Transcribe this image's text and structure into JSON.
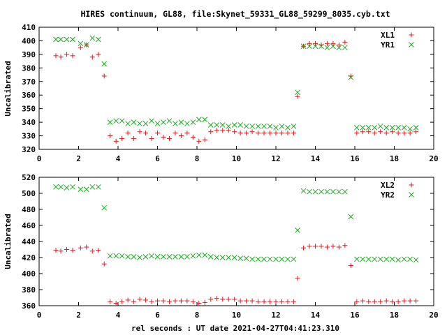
{
  "colors": {
    "series_a": "#e0191f",
    "series_b": "#18a81d"
  },
  "chart_data": [
    {
      "type": "scatter",
      "title": "HIRES continuum, GL88, file:Skynet_59331_GL88_59299_8035.cyb.txt",
      "ylabel": "Uncalibrated",
      "xlabel": "",
      "xlim": [
        0,
        20
      ],
      "ylim": [
        320,
        410
      ],
      "xticks": [
        0,
        2,
        4,
        6,
        8,
        10,
        12,
        14,
        16,
        18,
        20
      ],
      "yticks": [
        320,
        330,
        340,
        350,
        360,
        370,
        380,
        390,
        400,
        410
      ],
      "legend_position": "top-right",
      "series": [
        {
          "name": "XL1",
          "marker": "+",
          "color": "#e0191f",
          "x": [
            0.85,
            1.1,
            1.4,
            1.7,
            2.1,
            2.4,
            2.7,
            3.0,
            3.3,
            3.6,
            3.9,
            4.2,
            4.5,
            4.8,
            5.1,
            5.4,
            5.7,
            6.0,
            6.3,
            6.6,
            6.9,
            7.2,
            7.5,
            7.8,
            8.1,
            8.4,
            8.7,
            9.0,
            9.3,
            9.6,
            9.9,
            10.2,
            10.5,
            10.8,
            11.1,
            11.4,
            11.7,
            12.0,
            12.3,
            12.6,
            12.9,
            13.1,
            13.4,
            13.7,
            14.0,
            14.3,
            14.6,
            14.9,
            15.2,
            15.5,
            15.8,
            16.1,
            16.4,
            16.7,
            17.0,
            17.3,
            17.6,
            17.9,
            18.2,
            18.5,
            18.8,
            19.1
          ],
          "y": [
            389,
            388,
            390,
            389,
            395,
            397,
            388,
            390,
            374,
            330,
            326,
            328,
            332,
            328,
            333,
            332,
            328,
            332,
            329,
            328,
            332,
            330,
            332,
            329,
            326,
            327,
            333,
            334,
            334,
            334,
            333,
            332,
            332,
            333,
            332,
            332,
            332,
            332,
            332,
            332,
            332,
            359,
            396,
            398,
            398,
            397,
            398,
            398,
            397,
            399,
            374,
            332,
            333,
            333,
            332,
            333,
            332,
            333,
            332,
            332,
            332,
            333
          ]
        },
        {
          "name": "YR1",
          "marker": "x",
          "color": "#18a81d",
          "x": [
            0.85,
            1.1,
            1.4,
            1.7,
            2.1,
            2.4,
            2.7,
            3.0,
            3.3,
            3.6,
            3.9,
            4.2,
            4.5,
            4.8,
            5.1,
            5.4,
            5.7,
            6.0,
            6.3,
            6.6,
            6.9,
            7.2,
            7.5,
            7.8,
            8.1,
            8.4,
            8.7,
            9.0,
            9.3,
            9.6,
            9.9,
            10.2,
            10.5,
            10.8,
            11.1,
            11.4,
            11.7,
            12.0,
            12.3,
            12.6,
            12.9,
            13.1,
            13.4,
            13.7,
            14.0,
            14.3,
            14.6,
            14.9,
            15.2,
            15.5,
            15.8,
            16.1,
            16.4,
            16.7,
            17.0,
            17.3,
            17.6,
            17.9,
            18.2,
            18.5,
            18.8,
            19.1
          ],
          "y": [
            401,
            401,
            401,
            401,
            398,
            397,
            402,
            401,
            383,
            340,
            341,
            341,
            339,
            340,
            339,
            339,
            341,
            339,
            340,
            341,
            339,
            340,
            339,
            340,
            342,
            342,
            338,
            338,
            338,
            337,
            338,
            338,
            337,
            337,
            337,
            337,
            337,
            336,
            337,
            336,
            337,
            362,
            396,
            396,
            396,
            396,
            395,
            396,
            395,
            395,
            373,
            336,
            336,
            336,
            336,
            337,
            336,
            336,
            336,
            336,
            335,
            336
          ]
        }
      ]
    },
    {
      "type": "scatter",
      "title": "",
      "ylabel": "Uncalibrated",
      "xlabel": "rel seconds : UT date 2021-04-27T04:41:23.310",
      "xlim": [
        0,
        20
      ],
      "ylim": [
        360,
        520
      ],
      "xticks": [
        0,
        2,
        4,
        6,
        8,
        10,
        12,
        14,
        16,
        18,
        20
      ],
      "yticks": [
        360,
        380,
        400,
        420,
        440,
        460,
        480,
        500,
        520
      ],
      "legend_position": "top-right",
      "series": [
        {
          "name": "XL2",
          "marker": "+",
          "color": "#e0191f",
          "x": [
            0.85,
            1.1,
            1.4,
            1.7,
            2.1,
            2.4,
            2.7,
            3.0,
            3.3,
            3.6,
            3.9,
            4.2,
            4.5,
            4.8,
            5.1,
            5.4,
            5.7,
            6.0,
            6.3,
            6.6,
            6.9,
            7.2,
            7.5,
            7.8,
            8.1,
            8.4,
            8.7,
            9.0,
            9.3,
            9.6,
            9.9,
            10.2,
            10.5,
            10.8,
            11.1,
            11.4,
            11.7,
            12.0,
            12.3,
            12.6,
            12.9,
            13.1,
            13.4,
            13.7,
            14.0,
            14.3,
            14.6,
            14.9,
            15.2,
            15.5,
            15.8,
            16.1,
            16.4,
            16.7,
            17.0,
            17.3,
            17.6,
            17.9,
            18.2,
            18.5,
            18.8,
            19.1
          ],
          "y": [
            429,
            428,
            430,
            429,
            432,
            433,
            428,
            429,
            412,
            365,
            363,
            365,
            367,
            365,
            368,
            367,
            365,
            366,
            366,
            365,
            366,
            366,
            366,
            365,
            363,
            364,
            368,
            369,
            368,
            368,
            368,
            366,
            366,
            366,
            365,
            365,
            365,
            365,
            365,
            365,
            365,
            394,
            432,
            434,
            434,
            434,
            433,
            434,
            433,
            435,
            410,
            365,
            366,
            365,
            365,
            365,
            366,
            365,
            365,
            366,
            366,
            366
          ]
        },
        {
          "name": "YR2",
          "marker": "x",
          "color": "#18a81d",
          "x": [
            0.85,
            1.1,
            1.4,
            1.7,
            2.1,
            2.4,
            2.7,
            3.0,
            3.3,
            3.6,
            3.9,
            4.2,
            4.5,
            4.8,
            5.1,
            5.4,
            5.7,
            6.0,
            6.3,
            6.6,
            6.9,
            7.2,
            7.5,
            7.8,
            8.1,
            8.4,
            8.7,
            9.0,
            9.3,
            9.6,
            9.9,
            10.2,
            10.5,
            10.8,
            11.1,
            11.4,
            11.7,
            12.0,
            12.3,
            12.6,
            12.9,
            13.1,
            13.4,
            13.7,
            14.0,
            14.3,
            14.6,
            14.9,
            15.2,
            15.5,
            15.8,
            16.1,
            16.4,
            16.7,
            17.0,
            17.3,
            17.6,
            17.9,
            18.2,
            18.5,
            18.8,
            19.1
          ],
          "y": [
            508,
            508,
            507,
            508,
            505,
            505,
            508,
            508,
            482,
            422,
            422,
            422,
            421,
            421,
            420,
            421,
            422,
            421,
            421,
            421,
            421,
            421,
            421,
            422,
            423,
            423,
            421,
            420,
            420,
            420,
            420,
            419,
            419,
            418,
            418,
            418,
            418,
            418,
            418,
            418,
            418,
            454,
            503,
            502,
            502,
            502,
            502,
            502,
            502,
            502,
            471,
            418,
            418,
            418,
            418,
            418,
            418,
            418,
            417,
            418,
            418,
            417
          ]
        }
      ]
    }
  ]
}
